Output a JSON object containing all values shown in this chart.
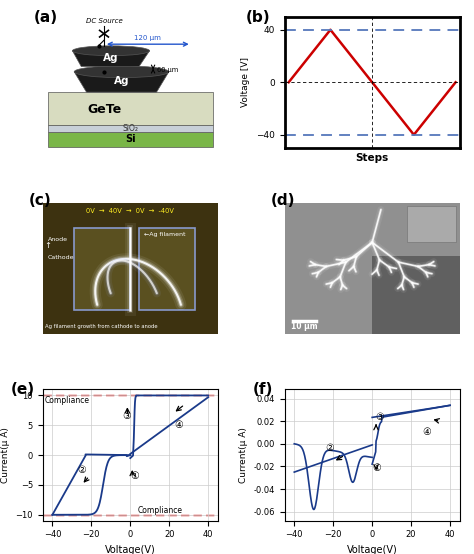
{
  "panel_labels": [
    "(a)",
    "(b)",
    "(c)",
    "(d)",
    "(e)",
    "(f)"
  ],
  "panel_label_fontsize": 11,
  "bg_color": "#ffffff",
  "b_voltage_line_color": "#cc0000",
  "b_dashed_color": "#5577bb",
  "b_ylabel": "Voltage [V]",
  "b_xlabel": "Steps",
  "b_yticks": [
    -40,
    0,
    40
  ],
  "b_ylim": [
    -50,
    50
  ],
  "b_xpts": [
    0,
    1,
    2,
    3,
    4
  ],
  "b_ypts": [
    0,
    40,
    0,
    -40,
    0
  ],
  "e_ylabel": "Current(μ A)",
  "e_xlabel": "Voltage(V)",
  "e_xlim": [
    -45,
    45
  ],
  "e_ylim": [
    -11,
    11
  ],
  "e_compliance_color": "#cc0000",
  "e_line_color": "#1a3a8a",
  "e_grid_color": "#cccccc",
  "f_ylabel": "Current(μ A)",
  "f_xlabel": "Voltage(V)",
  "f_xlim": [
    -45,
    45
  ],
  "f_ylim": [
    -0.068,
    0.048
  ],
  "f_line_color": "#1a3a8a",
  "f_grid_color": "#cccccc"
}
